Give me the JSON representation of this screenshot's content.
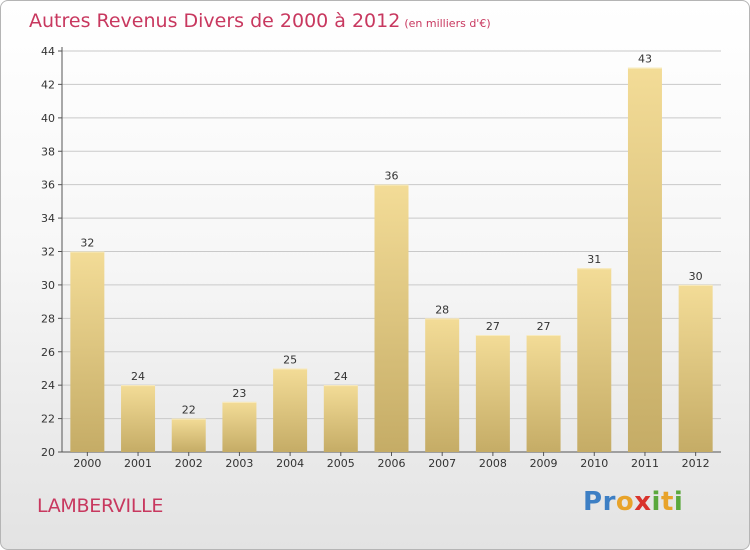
{
  "chart_data": {
    "type": "bar",
    "title": "Autres Revenus Divers de 2000 à 2012",
    "subtitle": "(en milliers d'€)",
    "categories": [
      "2000",
      "2001",
      "2002",
      "2003",
      "2004",
      "2005",
      "2006",
      "2007",
      "2008",
      "2009",
      "2010",
      "2011",
      "2012"
    ],
    "values": [
      32,
      24,
      22,
      23,
      25,
      24,
      36,
      28,
      27,
      27,
      31,
      43,
      30
    ],
    "ylim": [
      20,
      44
    ],
    "yticks": [
      20,
      22,
      24,
      26,
      28,
      30,
      32,
      34,
      36,
      38,
      40,
      42,
      44
    ],
    "grid": true,
    "bar_color_top": "#f3dc97",
    "bar_color_bottom": "#c5ac66"
  },
  "footer": {
    "commune": "LAMBERVILLE",
    "logo_letters": [
      "P",
      "r",
      "o",
      "x",
      "i",
      "t",
      "i"
    ]
  }
}
